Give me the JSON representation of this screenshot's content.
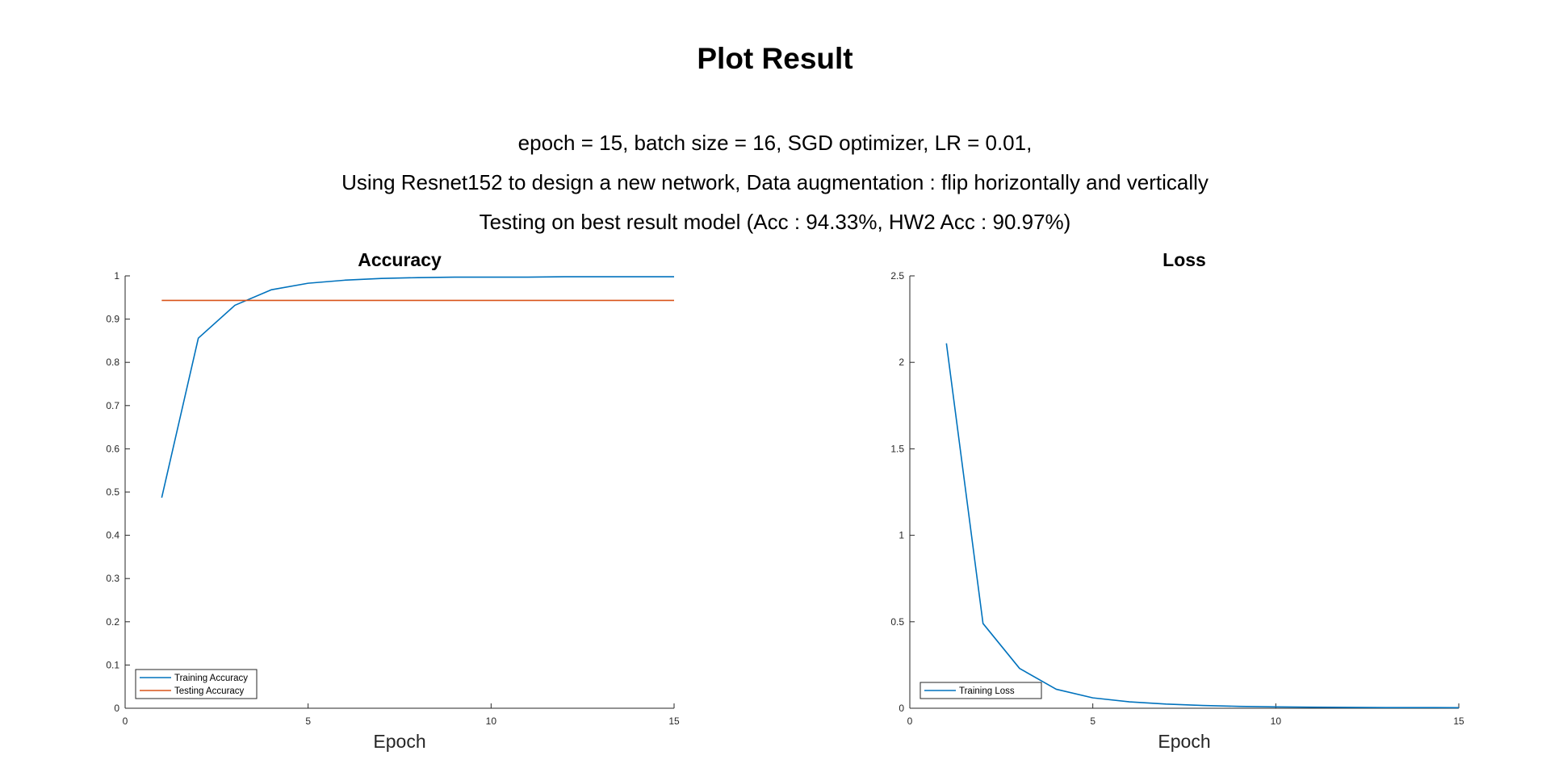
{
  "figure": {
    "title": "Plot Result",
    "subtitle_lines": [
      "epoch = 15, batch size = 16, SGD optimizer, LR = 0.01,",
      "Using Resnet152 to design a new network, Data augmentation : flip horizontally and vertically",
      "Testing on best result model (Acc : 94.33%, HW2 Acc : 90.97%)"
    ]
  },
  "chart_data": [
    {
      "type": "line",
      "title": "Accuracy",
      "xlabel": "Epoch",
      "ylabel": "",
      "xlim": [
        0,
        15
      ],
      "ylim": [
        0,
        1
      ],
      "xticks": [
        0,
        5,
        10,
        15
      ],
      "yticks": [
        0,
        0.1,
        0.2,
        0.3,
        0.4,
        0.5,
        0.6,
        0.7,
        0.8,
        0.9,
        1
      ],
      "grid": false,
      "legend_position": "bottom-left",
      "series": [
        {
          "name": "Training Accuracy",
          "color": "#0072BD",
          "x": [
            1,
            2,
            3,
            4,
            5,
            6,
            7,
            8,
            9,
            10,
            11,
            12,
            13,
            14,
            15
          ],
          "y": [
            0.487,
            0.856,
            0.932,
            0.968,
            0.983,
            0.99,
            0.994,
            0.996,
            0.997,
            0.997,
            0.997,
            0.998,
            0.998,
            0.998,
            0.998
          ]
        },
        {
          "name": "Testing Accuracy",
          "color": "#D95319",
          "x": [
            1,
            2,
            3,
            4,
            5,
            6,
            7,
            8,
            9,
            10,
            11,
            12,
            13,
            14,
            15
          ],
          "y": [
            0.9433,
            0.9433,
            0.9433,
            0.9433,
            0.9433,
            0.9433,
            0.9433,
            0.9433,
            0.9433,
            0.9433,
            0.9433,
            0.9433,
            0.9433,
            0.9433,
            0.9433
          ]
        }
      ]
    },
    {
      "type": "line",
      "title": "Loss",
      "xlabel": "Epoch",
      "ylabel": "",
      "xlim": [
        0,
        15
      ],
      "ylim": [
        0,
        2.5
      ],
      "xticks": [
        0,
        5,
        10,
        15
      ],
      "yticks": [
        0,
        0.5,
        1,
        1.5,
        2,
        2.5
      ],
      "grid": false,
      "legend_position": "bottom-left",
      "series": [
        {
          "name": "Training Loss",
          "color": "#0072BD",
          "x": [
            1,
            2,
            3,
            4,
            5,
            6,
            7,
            8,
            9,
            10,
            11,
            12,
            13,
            14,
            15
          ],
          "y": [
            2.11,
            0.49,
            0.23,
            0.11,
            0.06,
            0.037,
            0.024,
            0.016,
            0.011,
            0.008,
            0.006,
            0.005,
            0.004,
            0.004,
            0.003
          ]
        }
      ]
    }
  ]
}
